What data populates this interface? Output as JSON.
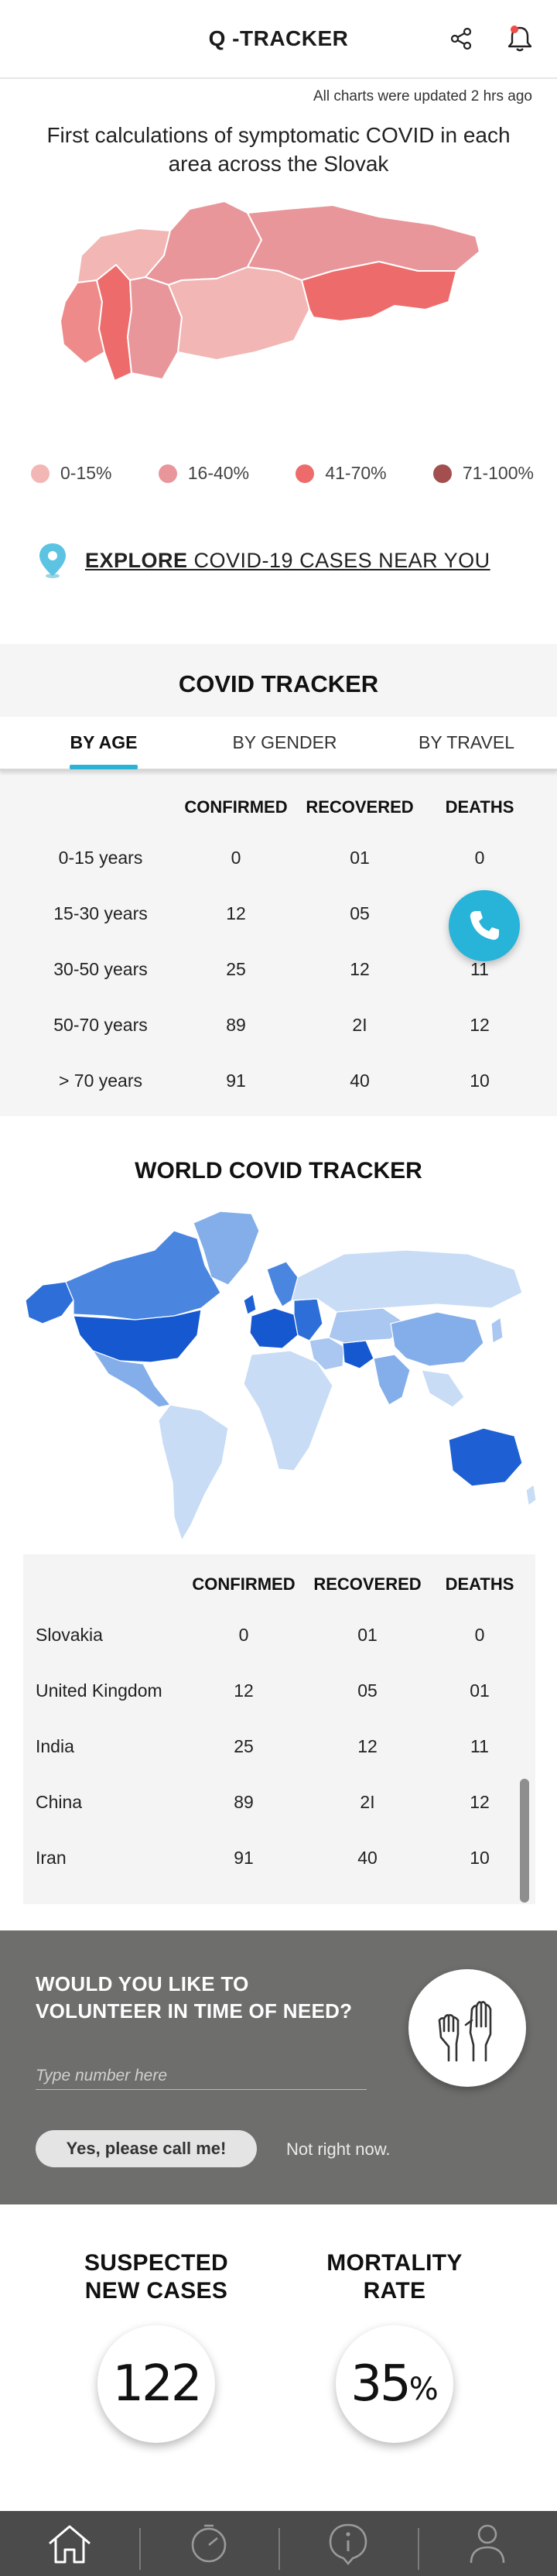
{
  "header": {
    "title": "Q -TRACKER",
    "share_icon": "share-icon",
    "bell_icon": "bell-icon",
    "bell_badge_color": "#f04b4b"
  },
  "updated_text": "All charts were updated 2 hrs ago",
  "map_title": "First calculations of symptomatic COVID in each area across the Slovak",
  "legend": [
    {
      "label": "0-15%",
      "color": "#f2b6b5"
    },
    {
      "label": "16-40%",
      "color": "#e8969a"
    },
    {
      "label": "41-70%",
      "color": "#ee6b6b"
    },
    {
      "label": "71-100%",
      "color": "#a34f4f"
    }
  ],
  "explore": {
    "bold": "EXPLORE",
    "rest": " COVID-19 CASES NEAR YOU",
    "icon": "map-pin-icon"
  },
  "covid_tracker": {
    "title": "COVID TRACKER",
    "tabs": [
      "BY AGE",
      "BY GENDER",
      "BY TRAVEL"
    ],
    "active_tab": "BY AGE",
    "columns": [
      "CONFIRMED",
      "RECOVERED",
      "DEATHS"
    ],
    "rows": [
      {
        "label": "0-15 years",
        "confirmed": "0",
        "recovered": "01",
        "deaths": "0"
      },
      {
        "label": "15-30 years",
        "confirmed": "12",
        "recovered": "05",
        "deaths": ""
      },
      {
        "label": "30-50 years",
        "confirmed": "25",
        "recovered": "12",
        "deaths": "11"
      },
      {
        "label": "50-70 years",
        "confirmed": "89",
        "recovered": "2I",
        "deaths": "12"
      },
      {
        "label": "> 70 years",
        "confirmed": "91",
        "recovered": "40",
        "deaths": "10"
      }
    ]
  },
  "world_tracker": {
    "title": "WORLD COVID TRACKER",
    "columns": [
      "CONFIRMED",
      "RECOVERED",
      "DEATHS"
    ],
    "rows": [
      {
        "label": "Slovakia",
        "confirmed": "0",
        "recovered": "01",
        "deaths": "0"
      },
      {
        "label": "United Kingdom",
        "confirmed": "12",
        "recovered": "05",
        "deaths": "01"
      },
      {
        "label": "India",
        "confirmed": "25",
        "recovered": "12",
        "deaths": "11"
      },
      {
        "label": "China",
        "confirmed": "89",
        "recovered": "2I",
        "deaths": "12"
      },
      {
        "label": "Iran",
        "confirmed": "91",
        "recovered": "40",
        "deaths": "10"
      }
    ]
  },
  "volunteer": {
    "question_line1": "WOULD YOU LIKE TO",
    "question_line2": "VOLUNTEER IN TIME OF NEED?",
    "input_placeholder": "Type number here",
    "yes_label": "Yes, please call me!",
    "no_label": "Not right now.",
    "icon": "raised-hands-icon"
  },
  "stats": {
    "suspected_label_1": "SUSPECTED",
    "suspected_label_2": "NEW CASES",
    "suspected_value": "122",
    "mortality_label_1": "MORTALITY",
    "mortality_label_2": "RATE",
    "mortality_value": "35",
    "mortality_unit": "%"
  },
  "nav": [
    {
      "name": "home",
      "icon": "home-icon",
      "active": true
    },
    {
      "name": "timer",
      "icon": "timer-icon",
      "active": false
    },
    {
      "name": "info",
      "icon": "info-icon",
      "active": false
    },
    {
      "name": "profile",
      "icon": "user-icon",
      "active": false
    }
  ],
  "colors": {
    "accent": "#2bb3d6",
    "header_bg": "#ffffff",
    "volunteer_bg": "#6e6e6c",
    "nav_bg": "#4b4b4b"
  }
}
